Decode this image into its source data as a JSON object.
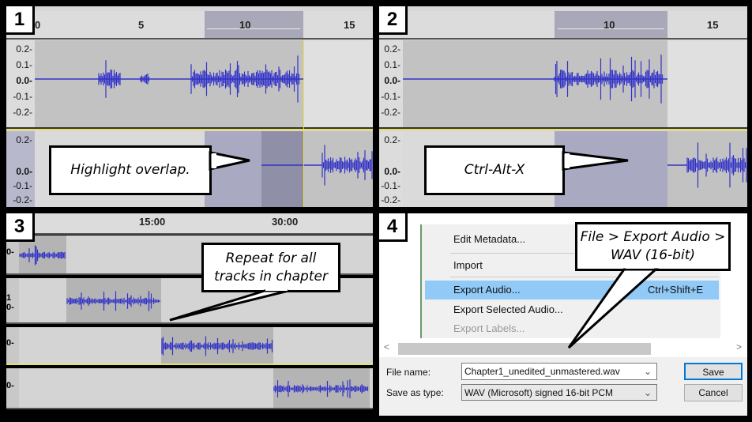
{
  "panels": {
    "p1": {
      "number": "1",
      "ruler_ticks": [
        "0",
        "5",
        "10",
        "15"
      ],
      "scale_top": [
        "0.2-",
        "0.1-",
        "0.0-",
        "-0.1-",
        "-0.2-"
      ],
      "scale_bottom": [
        "0.2-",
        "0.0-",
        "-0.1-",
        "-0.2-"
      ],
      "callout": "Highlight overlap."
    },
    "p2": {
      "number": "2",
      "ruler_ticks": [
        "10",
        "15"
      ],
      "scale_top": [
        "0.2-",
        "0.1-",
        "0.0-",
        "-0.1-",
        "-0.2-"
      ],
      "scale_bottom": [
        "0.2-",
        "0.0-",
        "-0.1-",
        "-0.2-"
      ],
      "callout": "Ctrl-Alt-X"
    },
    "p3": {
      "number": "3",
      "ruler_ticks": [
        "15:00",
        "30:00"
      ],
      "track_labels": [
        "0-",
        "1\n0-",
        "0-",
        "0-"
      ],
      "callout": "Repeat for all tracks in chapter"
    },
    "p4": {
      "number": "4",
      "menu": [
        {
          "label": "Edit Metadata...",
          "shortcut": "",
          "highlighted": false,
          "disabled": false
        },
        {
          "label": "Import",
          "shortcut": "",
          "highlighted": false,
          "disabled": false
        },
        {
          "label": "Export Audio...",
          "shortcut": "Ctrl+Shift+E",
          "highlighted": true,
          "disabled": false
        },
        {
          "label": "Export Selected Audio...",
          "shortcut": "",
          "highlighted": false,
          "disabled": false
        },
        {
          "label": "Export Labels...",
          "shortcut": "",
          "highlighted": false,
          "disabled": true
        }
      ],
      "file_name_label": "File name:",
      "file_name_value": "Chapter1_unedited_unmastered.wav",
      "save_type_label": "Save as type:",
      "save_type_value": "WAV (Microsoft) signed 16-bit PCM",
      "save_button": "Save",
      "cancel_button": "Cancel",
      "scroll_left": "<",
      "scroll_right": ">",
      "callout": "File > Export Audio > WAV (16-bit)"
    }
  },
  "colors": {
    "waveform": "#3232c8",
    "selection": "#a9a9c2",
    "cursor": "#f0e040",
    "menu_highlight": "#91c9f7"
  }
}
